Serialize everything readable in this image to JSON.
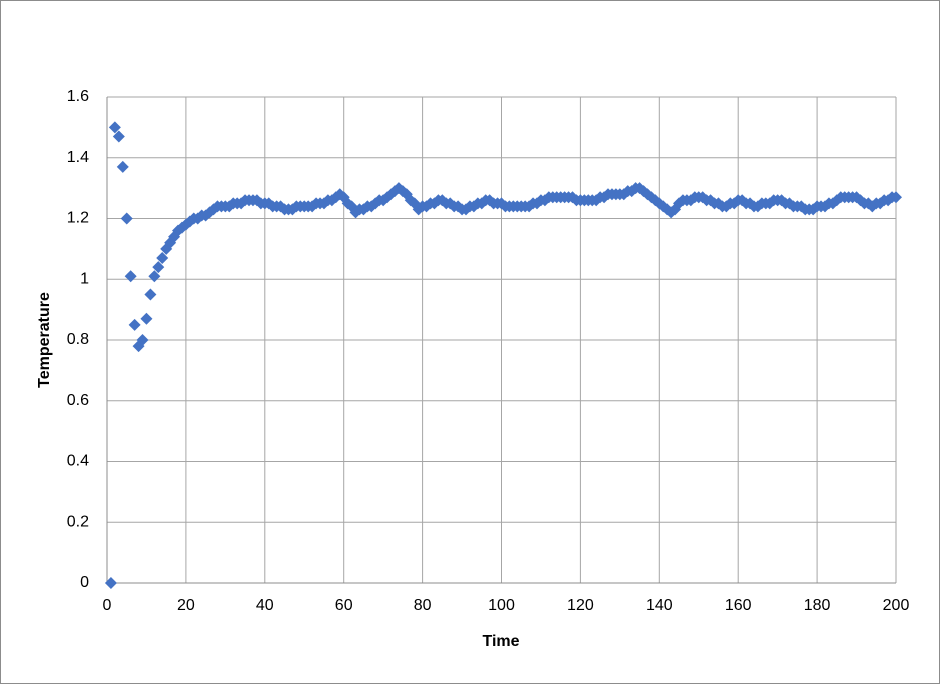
{
  "chart_data": {
    "type": "scatter",
    "x_label": "Time",
    "y_label": "Temperature",
    "color": "#4472c4",
    "marker": "diamond",
    "grid": true,
    "xlim": [
      0,
      200
    ],
    "xticks": [
      0,
      20,
      40,
      60,
      80,
      100,
      120,
      140,
      160,
      180,
      200
    ],
    "ylim": [
      0,
      1.6
    ],
    "yticks": [
      0,
      0.2,
      0.4,
      0.6,
      0.8,
      1,
      1.2,
      1.4,
      1.6
    ],
    "x": [
      1,
      2,
      3,
      4,
      5,
      6,
      7,
      8,
      9,
      10,
      11,
      12,
      13,
      14,
      15,
      16,
      17,
      18,
      19,
      20,
      21,
      22,
      23,
      24,
      25,
      26,
      27,
      28,
      29,
      30,
      31,
      32,
      33,
      34,
      35,
      36,
      37,
      38,
      39,
      40,
      41,
      42,
      43,
      44,
      45,
      46,
      47,
      48,
      49,
      50,
      51,
      52,
      53,
      54,
      55,
      56,
      57,
      58,
      59,
      60,
      61,
      62,
      63,
      64,
      65,
      66,
      67,
      68,
      69,
      70,
      71,
      72,
      73,
      74,
      75,
      76,
      77,
      78,
      79,
      80,
      81,
      82,
      83,
      84,
      85,
      86,
      87,
      88,
      89,
      90,
      91,
      92,
      93,
      94,
      95,
      96,
      97,
      98,
      99,
      100,
      101,
      102,
      103,
      104,
      105,
      106,
      107,
      108,
      109,
      110,
      111,
      112,
      113,
      114,
      115,
      116,
      117,
      118,
      119,
      120,
      121,
      122,
      123,
      124,
      125,
      126,
      127,
      128,
      129,
      130,
      131,
      132,
      133,
      134,
      135,
      136,
      137,
      138,
      139,
      140,
      141,
      142,
      143,
      144,
      145,
      146,
      147,
      148,
      149,
      150,
      151,
      152,
      153,
      154,
      155,
      156,
      157,
      158,
      159,
      160,
      161,
      162,
      163,
      164,
      165,
      166,
      167,
      168,
      169,
      170,
      171,
      172,
      173,
      174,
      175,
      176,
      177,
      178,
      179,
      180,
      181,
      182,
      183,
      184,
      185,
      186,
      187,
      188,
      189,
      190,
      191,
      192,
      193,
      194,
      195,
      196,
      197,
      198,
      199,
      200
    ],
    "values": [
      0,
      1.5,
      1.47,
      1.37,
      1.2,
      1.01,
      0.85,
      0.78,
      0.8,
      0.87,
      0.95,
      1.01,
      1.04,
      1.07,
      1.1,
      1.12,
      1.14,
      1.16,
      1.17,
      1.18,
      1.19,
      1.2,
      1.2,
      1.21,
      1.21,
      1.22,
      1.23,
      1.24,
      1.24,
      1.24,
      1.24,
      1.25,
      1.25,
      1.25,
      1.26,
      1.26,
      1.26,
      1.26,
      1.25,
      1.25,
      1.25,
      1.24,
      1.24,
      1.24,
      1.23,
      1.23,
      1.23,
      1.24,
      1.24,
      1.24,
      1.24,
      1.24,
      1.25,
      1.25,
      1.25,
      1.26,
      1.26,
      1.27,
      1.28,
      1.27,
      1.25,
      1.24,
      1.22,
      1.23,
      1.23,
      1.24,
      1.24,
      1.25,
      1.26,
      1.26,
      1.27,
      1.28,
      1.29,
      1.3,
      1.29,
      1.28,
      1.26,
      1.25,
      1.23,
      1.24,
      1.24,
      1.25,
      1.25,
      1.26,
      1.26,
      1.25,
      1.25,
      1.24,
      1.24,
      1.23,
      1.23,
      1.24,
      1.24,
      1.25,
      1.25,
      1.26,
      1.26,
      1.25,
      1.25,
      1.25,
      1.24,
      1.24,
      1.24,
      1.24,
      1.24,
      1.24,
      1.24,
      1.25,
      1.25,
      1.26,
      1.26,
      1.27,
      1.27,
      1.27,
      1.27,
      1.27,
      1.27,
      1.27,
      1.26,
      1.26,
      1.26,
      1.26,
      1.26,
      1.26,
      1.27,
      1.27,
      1.28,
      1.28,
      1.28,
      1.28,
      1.28,
      1.29,
      1.29,
      1.3,
      1.3,
      1.29,
      1.28,
      1.27,
      1.26,
      1.25,
      1.24,
      1.23,
      1.22,
      1.23,
      1.25,
      1.26,
      1.26,
      1.26,
      1.27,
      1.27,
      1.27,
      1.26,
      1.26,
      1.25,
      1.25,
      1.24,
      1.24,
      1.25,
      1.25,
      1.26,
      1.26,
      1.25,
      1.25,
      1.24,
      1.24,
      1.25,
      1.25,
      1.25,
      1.26,
      1.26,
      1.26,
      1.25,
      1.25,
      1.24,
      1.24,
      1.24,
      1.23,
      1.23,
      1.23,
      1.24,
      1.24,
      1.24,
      1.25,
      1.25,
      1.26,
      1.27,
      1.27,
      1.27,
      1.27,
      1.27,
      1.26,
      1.25,
      1.25,
      1.24,
      1.25,
      1.25,
      1.26,
      1.26,
      1.27,
      1.27
    ]
  }
}
